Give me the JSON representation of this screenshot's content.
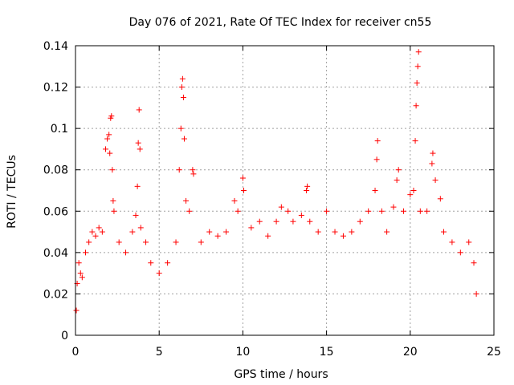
{
  "chart_data": {
    "type": "scatter",
    "title": "Day 076 of 2021, Rate Of TEC Index for receiver cn55",
    "xlabel": "GPS time / hours",
    "ylabel": "ROTI / TECUs",
    "xlim": [
      0,
      25
    ],
    "ylim": [
      0,
      0.14
    ],
    "xticks": [
      0,
      5,
      10,
      15,
      20,
      25
    ],
    "xtick_labels": [
      "0",
      "5",
      "10",
      "15",
      "20",
      "25"
    ],
    "yticks": [
      0,
      0.02,
      0.04,
      0.06,
      0.08,
      0.1,
      0.12,
      0.14
    ],
    "ytick_labels": [
      "0",
      "0.02",
      "0.04",
      "0.06",
      "0.08",
      "0.1",
      "0.12",
      "0.14"
    ],
    "grid": true,
    "marker": "+",
    "color": "#ff0000",
    "series": [
      {
        "name": "ROTI",
        "points": [
          [
            0.05,
            0.012
          ],
          [
            0.1,
            0.025
          ],
          [
            0.2,
            0.035
          ],
          [
            0.3,
            0.03
          ],
          [
            0.4,
            0.028
          ],
          [
            0.6,
            0.04
          ],
          [
            0.8,
            0.045
          ],
          [
            1.0,
            0.05
          ],
          [
            1.2,
            0.048
          ],
          [
            1.4,
            0.052
          ],
          [
            1.6,
            0.05
          ],
          [
            1.8,
            0.09
          ],
          [
            1.9,
            0.095
          ],
          [
            2.0,
            0.097
          ],
          [
            2.05,
            0.088
          ],
          [
            2.1,
            0.105
          ],
          [
            2.15,
            0.106
          ],
          [
            2.2,
            0.08
          ],
          [
            2.25,
            0.065
          ],
          [
            2.3,
            0.06
          ],
          [
            2.6,
            0.045
          ],
          [
            3.0,
            0.04
          ],
          [
            3.4,
            0.05
          ],
          [
            3.6,
            0.058
          ],
          [
            3.7,
            0.072
          ],
          [
            3.75,
            0.093
          ],
          [
            3.8,
            0.109
          ],
          [
            3.85,
            0.09
          ],
          [
            3.9,
            0.052
          ],
          [
            4.2,
            0.045
          ],
          [
            4.5,
            0.035
          ],
          [
            5.0,
            0.03
          ],
          [
            5.5,
            0.035
          ],
          [
            6.0,
            0.045
          ],
          [
            6.2,
            0.08
          ],
          [
            6.3,
            0.1
          ],
          [
            6.35,
            0.12
          ],
          [
            6.4,
            0.124
          ],
          [
            6.45,
            0.115
          ],
          [
            6.5,
            0.095
          ],
          [
            6.6,
            0.065
          ],
          [
            6.8,
            0.06
          ],
          [
            7.0,
            0.08
          ],
          [
            7.05,
            0.078
          ],
          [
            7.5,
            0.045
          ],
          [
            8.0,
            0.05
          ],
          [
            8.5,
            0.048
          ],
          [
            9.0,
            0.05
          ],
          [
            9.5,
            0.065
          ],
          [
            9.7,
            0.06
          ],
          [
            10.0,
            0.076
          ],
          [
            10.05,
            0.07
          ],
          [
            10.5,
            0.052
          ],
          [
            11.0,
            0.055
          ],
          [
            11.5,
            0.048
          ],
          [
            12.0,
            0.055
          ],
          [
            12.3,
            0.062
          ],
          [
            12.7,
            0.06
          ],
          [
            13.0,
            0.055
          ],
          [
            13.5,
            0.058
          ],
          [
            13.8,
            0.07
          ],
          [
            13.85,
            0.072
          ],
          [
            14.0,
            0.055
          ],
          [
            14.5,
            0.05
          ],
          [
            15.0,
            0.06
          ],
          [
            15.5,
            0.05
          ],
          [
            16.0,
            0.048
          ],
          [
            16.5,
            0.05
          ],
          [
            17.0,
            0.055
          ],
          [
            17.5,
            0.06
          ],
          [
            17.9,
            0.07
          ],
          [
            18.0,
            0.085
          ],
          [
            18.05,
            0.094
          ],
          [
            18.3,
            0.06
          ],
          [
            18.6,
            0.05
          ],
          [
            19.0,
            0.062
          ],
          [
            19.2,
            0.075
          ],
          [
            19.3,
            0.08
          ],
          [
            19.6,
            0.06
          ],
          [
            20.0,
            0.068
          ],
          [
            20.2,
            0.07
          ],
          [
            20.3,
            0.094
          ],
          [
            20.35,
            0.111
          ],
          [
            20.4,
            0.122
          ],
          [
            20.45,
            0.13
          ],
          [
            20.5,
            0.137
          ],
          [
            20.6,
            0.06
          ],
          [
            21.0,
            0.06
          ],
          [
            21.3,
            0.083
          ],
          [
            21.35,
            0.088
          ],
          [
            21.5,
            0.075
          ],
          [
            21.8,
            0.066
          ],
          [
            22.0,
            0.05
          ],
          [
            22.5,
            0.045
          ],
          [
            23.0,
            0.04
          ],
          [
            23.5,
            0.045
          ],
          [
            23.8,
            0.035
          ],
          [
            23.95,
            0.02
          ]
        ]
      }
    ]
  }
}
